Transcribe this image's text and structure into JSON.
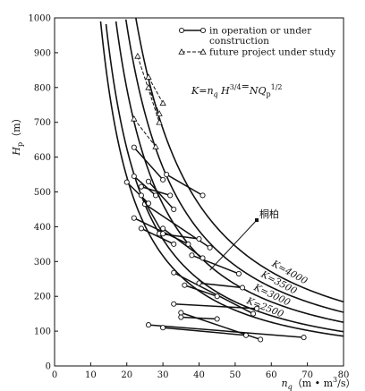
{
  "chart_data": {
    "type": "line",
    "xlabel": "n_q（m·m³/s）",
    "ylabel": "H_p（m）",
    "xlim": [
      0,
      80
    ],
    "ylim": [
      0,
      1000
    ],
    "x_ticks": [
      0,
      10,
      20,
      30,
      40,
      50,
      60,
      70,
      80
    ],
    "y_ticks": [
      0,
      100,
      200,
      300,
      400,
      500,
      600,
      700,
      800,
      900,
      1000
    ],
    "grid": false,
    "legend_position": "top-right",
    "formula": "K = n_q H^{3/4} = N Q_p^{1/2}",
    "legend": [
      {
        "label_line1": "in operation or under",
        "label_line2": "construction",
        "style": "solid-circle"
      },
      {
        "label_line1": "future project under study",
        "label_line2": "",
        "style": "dashed-triangle"
      }
    ],
    "curves": [
      {
        "name": "K=4000",
        "K": 4000
      },
      {
        "name": "K=3500",
        "K": 3500
      },
      {
        "name": "K=3000",
        "K": 3000
      },
      {
        "name": "K=2500",
        "K": 2500
      }
    ],
    "extra_curve": {
      "K": 2250
    },
    "annotation": {
      "text": "桐柏",
      "x": 43,
      "y": 275
    },
    "operating_projects": [
      {
        "x": [
          26,
          69
        ],
        "y": [
          118,
          82
        ]
      },
      {
        "x": [
          35,
          57
        ],
        "y": [
          153,
          76
        ]
      },
      {
        "x": [
          35,
          45
        ],
        "y": [
          140,
          135
        ]
      },
      {
        "x": [
          30,
          53
        ],
        "y": [
          110,
          88
        ]
      },
      {
        "x": [
          33,
          55
        ],
        "y": [
          268,
          150
        ]
      },
      {
        "x": [
          33,
          56
        ],
        "y": [
          178,
          165
        ]
      },
      {
        "x": [
          36,
          45
        ],
        "y": [
          232,
          200
        ]
      },
      {
        "x": [
          38,
          51
        ],
        "y": [
          318,
          265
        ]
      },
      {
        "x": [
          40,
          52
        ],
        "y": [
          238,
          225
        ]
      },
      {
        "x": [
          22,
          37
        ],
        "y": [
          425,
          350
        ]
      },
      {
        "x": [
          24,
          33
        ],
        "y": [
          395,
          350
        ]
      },
      {
        "x": [
          25,
          43
        ],
        "y": [
          465,
          340
        ]
      },
      {
        "x": [
          29,
          40
        ],
        "y": [
          380,
          365
        ]
      },
      {
        "x": [
          30,
          41
        ],
        "y": [
          395,
          310
        ]
      },
      {
        "x": [
          22,
          28
        ],
        "y": [
          545,
          490
        ]
      },
      {
        "x": [
          24,
          32
        ],
        "y": [
          515,
          490
        ]
      },
      {
        "x": [
          26,
          33
        ],
        "y": [
          530,
          450
        ]
      },
      {
        "x": [
          31,
          41
        ],
        "y": [
          550,
          490
        ]
      },
      {
        "x": [
          20,
          26
        ],
        "y": [
          528,
          467
        ]
      },
      {
        "x": [
          22,
          30
        ],
        "y": [
          628,
          535
        ]
      },
      {
        "x": [
          24,
          30
        ],
        "y": [
          490,
          380
        ]
      }
    ],
    "future_projects": [
      {
        "x": [
          23,
          29
        ],
        "y": [
          890,
          700
        ]
      },
      {
        "x": [
          26,
          30
        ],
        "y": [
          830,
          755
        ]
      },
      {
        "x": [
          26,
          29
        ],
        "y": [
          800,
          725
        ]
      },
      {
        "x": [
          22,
          28
        ],
        "y": [
          710,
          630
        ]
      }
    ]
  }
}
